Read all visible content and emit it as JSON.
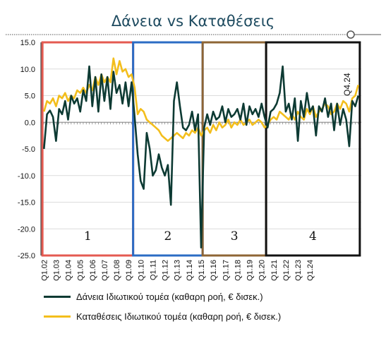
{
  "chart_data": {
    "type": "line",
    "title": "Δάνεια vs Καταθέσεις",
    "ylim": [
      -25,
      15
    ],
    "yticks": [
      15.0,
      10.0,
      5.0,
      0.0,
      -5.0,
      -10.0,
      -15.0,
      -20.0,
      -25.0
    ],
    "ytick_labels": [
      "15.0",
      "10.0",
      "5.0",
      "0.0",
      "-5.0",
      "-10.0",
      "-15.0",
      "-20.0",
      "-25.0"
    ],
    "x_tick_labels": [
      "Q1.02",
      "Q1.03",
      "Q1.04",
      "Q1.05",
      "Q1.06",
      "Q1.07",
      "Q1.08",
      "Q1.09",
      "Q1.10",
      "Q1.11",
      "Q1.12",
      "Q1.13",
      "Q1.14",
      "Q1.15",
      "Q1.16",
      "Q1.17",
      "Q1.18",
      "Q1.19",
      "Q1.20",
      "Q1.21",
      "Q1.22",
      "Q1.23",
      "Q1.24"
    ],
    "x_start": "Q1.02",
    "period": "quarterly",
    "annotation": "Q4.24",
    "grid": true,
    "legend_position": "bottom",
    "series": [
      {
        "name": "Δάνεια Ιδιωτικού τομέα (καθαρη ροή, € δισεκ.)",
        "color": "#0d3a33",
        "values": [
          -5.0,
          1.5,
          2.2,
          1.0,
          -3.5,
          2.5,
          1.5,
          4.0,
          0.5,
          5.0,
          3.5,
          4.5,
          2.0,
          6.0,
          4.0,
          10.5,
          3.0,
          8.5,
          2.0,
          9.0,
          4.0,
          8.5,
          2.5,
          9.5,
          5.5,
          7.0,
          3.5,
          7.5,
          3.0,
          7.5,
          1.0,
          -6.0,
          -11.0,
          -12.5,
          -2.0,
          -5.0,
          -10.0,
          -9.0,
          -6.0,
          -8.5,
          -10.0,
          -8.0,
          -15.5,
          4.0,
          7.5,
          3.0,
          -1.0,
          -1.5,
          -0.5,
          2.0,
          -1.5,
          1.5,
          -23.5,
          -1.0,
          1.5,
          -0.5,
          2.0,
          0.5,
          1.0,
          3.0,
          0.0,
          2.5,
          1.0,
          1.5,
          2.5,
          0.5,
          3.5,
          -0.5,
          3.0,
          1.5,
          2.5,
          1.0,
          3.5,
          1.0,
          -1.0,
          2.0,
          2.5,
          3.5,
          5.5,
          10.5,
          2.0,
          3.5,
          0.5,
          4.5,
          -3.5,
          4.0,
          1.0,
          5.5,
          2.0,
          3.0,
          -2.5,
          3.0,
          2.0,
          4.5,
          1.0,
          3.5,
          -1.5,
          3.5,
          -0.5,
          2.5,
          0.5,
          -4.5,
          4.0,
          3.0,
          5.0
        ]
      },
      {
        "name": "Καταθέσεις Ιδιωτικού τομέα (καθαρη ροή, € δισεκ.)",
        "color": "#f3be1c",
        "values": [
          2.0,
          4.0,
          3.5,
          4.5,
          3.0,
          5.0,
          4.5,
          5.5,
          4.0,
          5.0,
          4.5,
          6.0,
          5.5,
          6.5,
          5.5,
          7.0,
          6.0,
          8.5,
          7.0,
          9.0,
          7.5,
          8.5,
          7.5,
          12.0,
          9.0,
          11.5,
          9.5,
          10.0,
          8.5,
          9.0,
          6.5,
          1.5,
          2.5,
          2.0,
          0.5,
          0.0,
          -0.5,
          -1.0,
          -1.5,
          -2.5,
          -3.0,
          -3.5,
          -3.0,
          -2.5,
          -2.0,
          -2.5,
          -3.0,
          -2.0,
          -2.5,
          -1.5,
          -2.0,
          -1.0,
          -2.5,
          -1.5,
          -1.0,
          -2.0,
          -0.5,
          -1.5,
          0.0,
          -1.0,
          -0.5,
          0.5,
          -1.0,
          0.0,
          -0.5,
          0.5,
          -0.5,
          0.0,
          0.5,
          -0.5,
          0.0,
          0.5,
          0.0,
          -1.0,
          -0.5,
          0.5,
          1.0,
          0.5,
          2.0,
          1.5,
          1.0,
          0.5,
          1.5,
          0.5,
          2.0,
          1.0,
          0.5,
          2.5,
          1.5,
          3.0,
          1.0,
          2.0,
          2.5,
          3.5,
          3.0,
          1.5,
          2.0,
          3.5,
          2.5,
          4.0,
          3.5,
          2.0,
          4.5,
          5.0,
          7.0
        ]
      }
    ],
    "regions": [
      {
        "label": "1",
        "start_quarter": 0,
        "end_quarter": 30,
        "color": "#e45a51"
      },
      {
        "label": "2",
        "start_quarter": 30,
        "end_quarter": 53,
        "color": "#2b6cc4"
      },
      {
        "label": "3",
        "start_quarter": 53,
        "end_quarter": 74,
        "color": "#8e6535"
      },
      {
        "label": "4",
        "start_quarter": 74,
        "end_quarter": 105,
        "color": "#111111"
      }
    ]
  }
}
